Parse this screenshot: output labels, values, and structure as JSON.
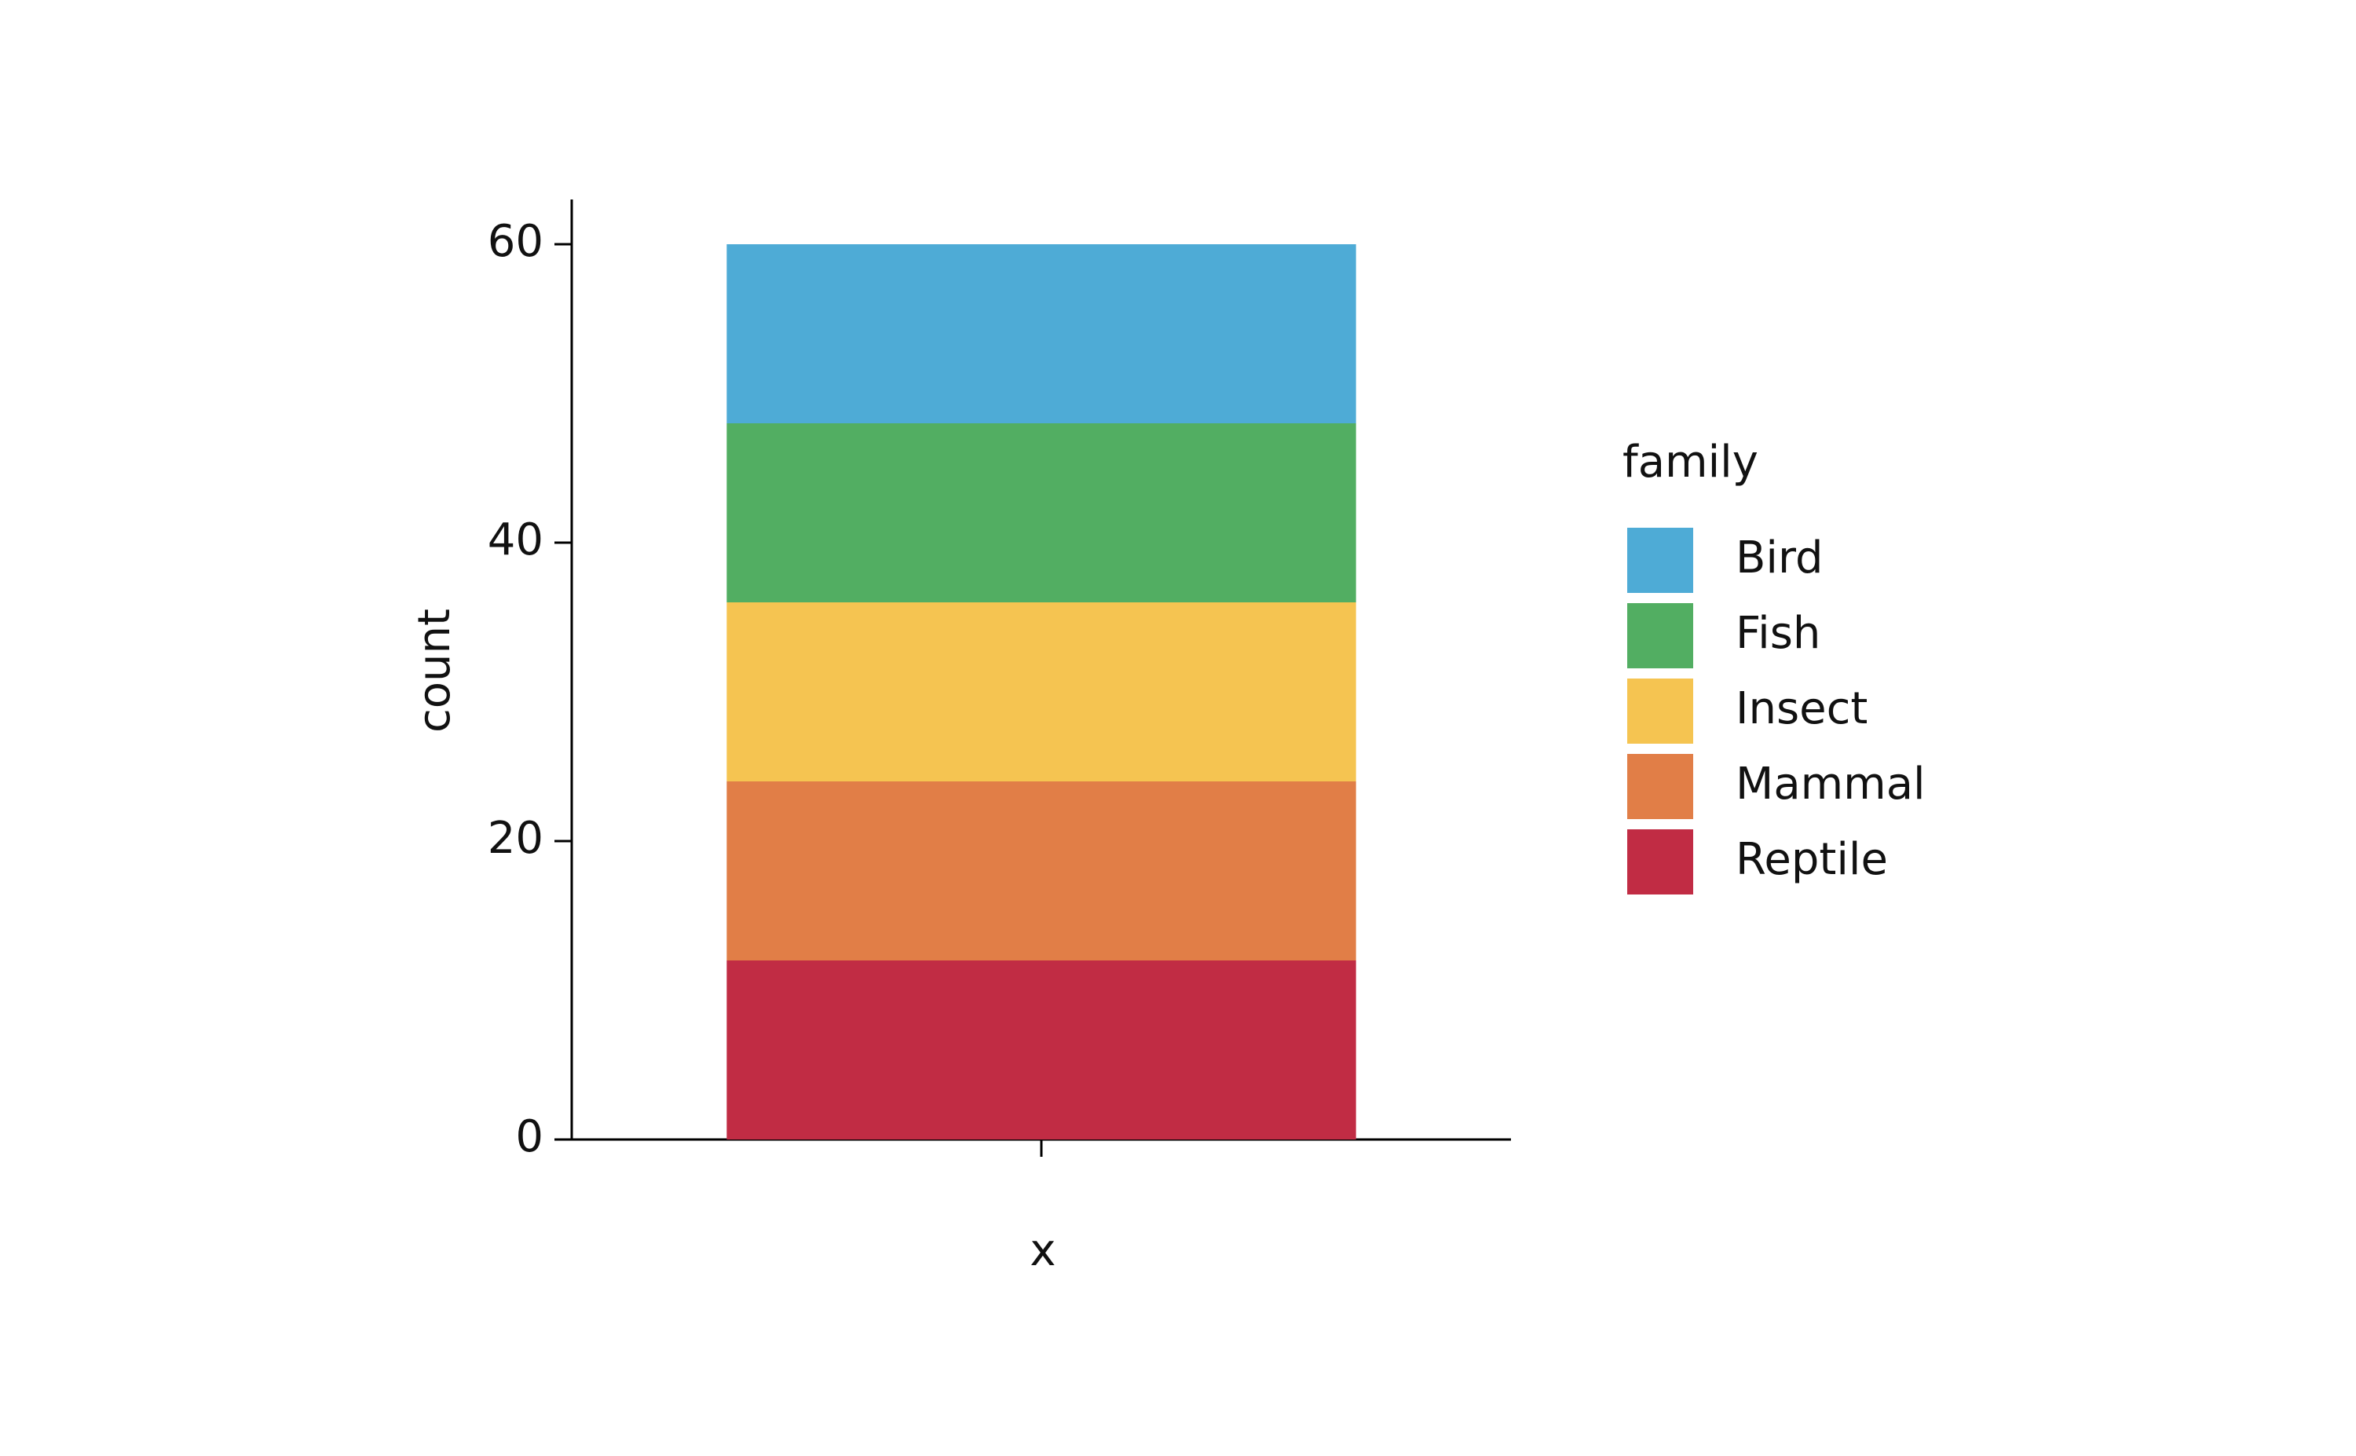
{
  "chart_data": {
    "type": "stacked-bar",
    "x_label": "x",
    "y_label": "count",
    "categories": [
      null
    ],
    "legend_title": "family",
    "series": [
      {
        "name": "Bird",
        "color": "#4eabd6",
        "values": [
          12
        ]
      },
      {
        "name": "Fish",
        "color": "#52ae62",
        "values": [
          12
        ]
      },
      {
        "name": "Insect",
        "color": "#f5c451",
        "values": [
          12
        ]
      },
      {
        "name": "Mammal",
        "color": "#e17e47",
        "values": [
          12
        ]
      },
      {
        "name": "Reptile",
        "color": "#c12c44",
        "values": [
          12
        ]
      }
    ],
    "ylim": [
      0,
      63
    ],
    "yticks": [
      0,
      20,
      40,
      60
    ],
    "grid": false,
    "legend": "right"
  }
}
